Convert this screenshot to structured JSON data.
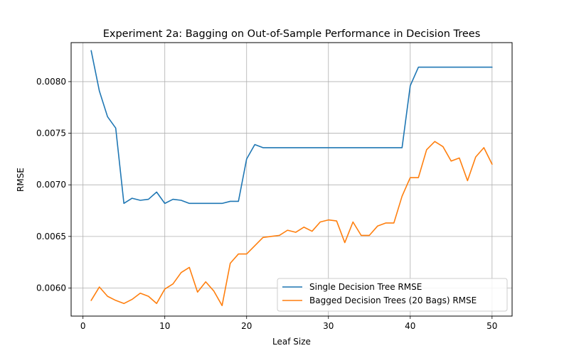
{
  "chart_data": {
    "type": "line",
    "title": "Experiment 2a: Bagging on Out-of-Sample Performance in Decision Trees",
    "xlabel": "Leaf Size",
    "ylabel": "RMSE",
    "xlim": [
      -1.45,
      52.45
    ],
    "ylim": [
      0.005728,
      0.008378
    ],
    "xticks": [
      0,
      10,
      20,
      30,
      40,
      50
    ],
    "xtick_labels": [
      "0",
      "10",
      "20",
      "30",
      "40",
      "50"
    ],
    "yticks": [
      0.006,
      0.0065,
      0.007,
      0.0075,
      0.008
    ],
    "ytick_labels": [
      "0.0060",
      "0.0065",
      "0.0070",
      "0.0075",
      "0.0080"
    ],
    "grid": true,
    "legend_position": "lower-right",
    "x": [
      1,
      2,
      3,
      4,
      5,
      6,
      7,
      8,
      9,
      10,
      11,
      12,
      13,
      14,
      15,
      16,
      17,
      18,
      19,
      20,
      21,
      22,
      23,
      24,
      25,
      26,
      27,
      28,
      29,
      30,
      31,
      32,
      33,
      34,
      35,
      36,
      37,
      38,
      39,
      40,
      41,
      42,
      43,
      44,
      45,
      46,
      47,
      48,
      49,
      50
    ],
    "series": [
      {
        "name": "Single Decision Tree RMSE",
        "color": "#1f77b4",
        "values": [
          0.0083,
          0.00791,
          0.00766,
          0.00755,
          0.00682,
          0.00687,
          0.00685,
          0.00686,
          0.00693,
          0.00682,
          0.00686,
          0.00685,
          0.00682,
          0.00682,
          0.00682,
          0.00682,
          0.00682,
          0.00684,
          0.00684,
          0.00725,
          0.00739,
          0.00736,
          0.00736,
          0.00736,
          0.00736,
          0.00736,
          0.00736,
          0.00736,
          0.00736,
          0.00736,
          0.00736,
          0.00736,
          0.00736,
          0.00736,
          0.00736,
          0.00736,
          0.00736,
          0.00736,
          0.00736,
          0.00796,
          0.00814,
          0.00814,
          0.00814,
          0.00814,
          0.00814,
          0.00814,
          0.00814,
          0.00814,
          0.00814,
          0.00814
        ]
      },
      {
        "name": "Bagged Decision Trees (20 Bags) RMSE",
        "color": "#ff7f0e",
        "values": [
          0.00588,
          0.00601,
          0.00592,
          0.00588,
          0.00585,
          0.00589,
          0.00595,
          0.00592,
          0.00585,
          0.00599,
          0.00604,
          0.00615,
          0.0062,
          0.00596,
          0.00606,
          0.00597,
          0.00583,
          0.00624,
          0.00633,
          0.00633,
          0.00641,
          0.00649,
          0.0065,
          0.00651,
          0.00656,
          0.00654,
          0.00659,
          0.00655,
          0.00664,
          0.00666,
          0.00665,
          0.00644,
          0.00664,
          0.00651,
          0.00651,
          0.0066,
          0.00663,
          0.00663,
          0.00689,
          0.00707,
          0.00707,
          0.00734,
          0.00742,
          0.00737,
          0.00723,
          0.00726,
          0.00704,
          0.00727,
          0.00736,
          0.0072
        ]
      }
    ]
  }
}
